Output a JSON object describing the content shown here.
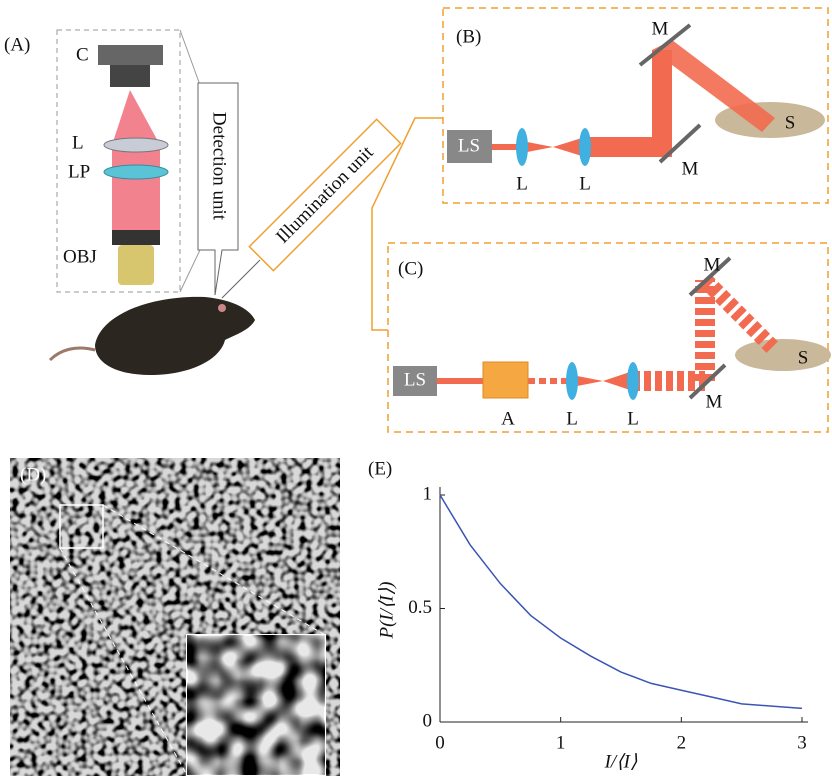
{
  "panel_a": {
    "label": "(A)",
    "camera": "C",
    "lens": "L",
    "polarizer": "LP",
    "objective": "OBJ",
    "detection": "Detection unit",
    "illumination": "Illumination unit"
  },
  "panel_b": {
    "label": "(B)",
    "source": "LS",
    "lenses": [
      "L",
      "L"
    ],
    "mirrors": [
      "M",
      "M"
    ],
    "sample": "S"
  },
  "panel_c": {
    "label": "(C)",
    "source": "LS",
    "attenuator": "A",
    "lenses": [
      "L",
      "L"
    ],
    "mirrors": [
      "M",
      "M"
    ],
    "sample": "S"
  },
  "panel_d": {
    "label": "(D)"
  },
  "chart_data": {
    "type": "line",
    "label": "(E)",
    "x_label": "I/⟨I⟩",
    "y_label": "P(I/⟨I⟩)",
    "x": [
      0,
      0.25,
      0.5,
      0.75,
      1,
      1.25,
      1.5,
      1.75,
      2,
      2.25,
      2.5,
      2.75,
      3
    ],
    "series": [
      {
        "color": "#3a55b4",
        "values": [
          1,
          0.78,
          0.61,
          0.47,
          0.37,
          0.29,
          0.22,
          0.17,
          0.14,
          0.11,
          0.08,
          0.07,
          0.06
        ]
      }
    ],
    "xlim": [
      0,
      3
    ],
    "ylim": [
      0,
      1
    ],
    "xticks": [
      0,
      1,
      2,
      3
    ],
    "yticks": [
      0,
      0.5,
      1
    ]
  }
}
